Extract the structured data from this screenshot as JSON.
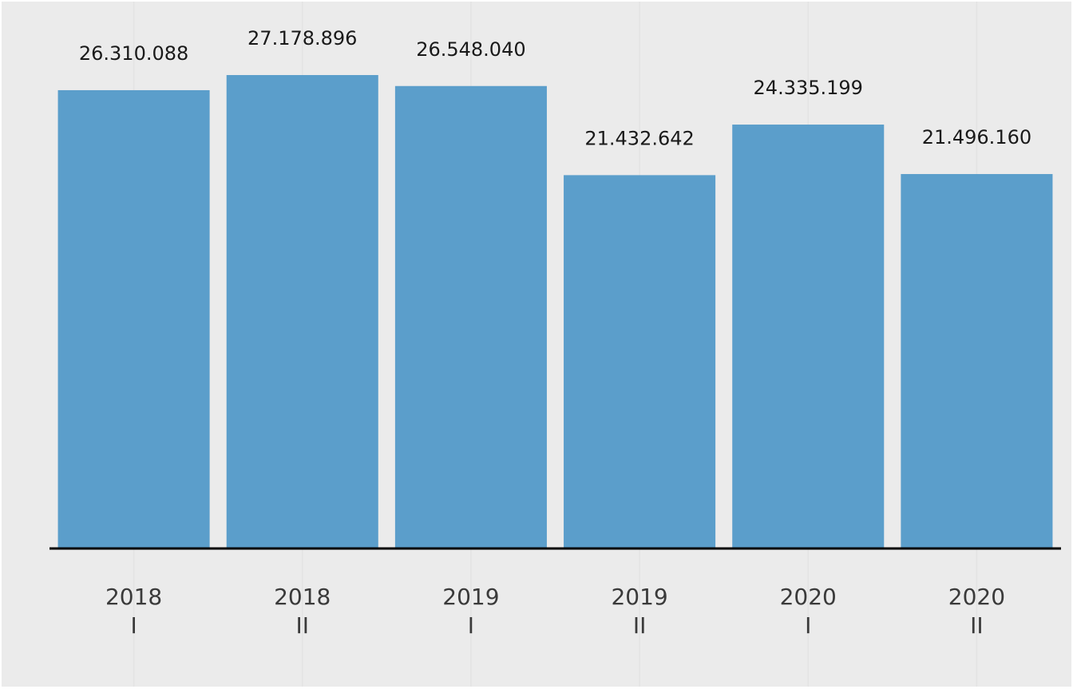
{
  "chart_data": {
    "type": "bar",
    "categories": [
      [
        "2018",
        "I"
      ],
      [
        "2018",
        "II"
      ],
      [
        "2019",
        "I"
      ],
      [
        "2019",
        "II"
      ],
      [
        "2020",
        "I"
      ],
      [
        "2020",
        "II"
      ]
    ],
    "values": [
      26310088,
      27178896,
      26548040,
      21432642,
      24335199,
      21496160
    ],
    "data_labels": [
      "26.310.088",
      "27.178.896",
      "26.548.040",
      "21.432.642",
      "24.335.199",
      "21.496.160"
    ],
    "ylim": [
      0,
      32000000
    ],
    "grid": "vertical",
    "colors": {
      "bar": "#5b9ecb",
      "panel": "#ebebeb",
      "grid": "#e3e3e3",
      "baseline": "#000000"
    }
  }
}
